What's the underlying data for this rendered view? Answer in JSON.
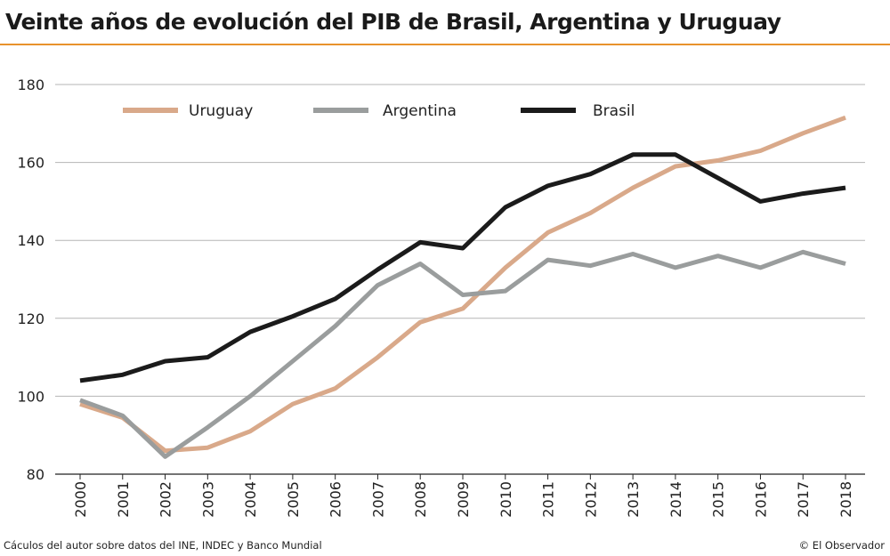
{
  "header": {
    "title": "Veinte años de evolución del PIB de Brasil, Argentina y Uruguay"
  },
  "footer": {
    "source": "Cáculos del autor sobre datos del INE, INDEC y Banco Mundial",
    "credit": "© El Observador"
  },
  "chart_data": {
    "type": "line",
    "title": "Veinte años de evolución del PIB de Brasil, Argentina y Uruguay",
    "xlabel": "",
    "ylabel": "",
    "x": [
      "2000",
      "2001",
      "2002",
      "2003",
      "2004",
      "2005",
      "2006",
      "2007",
      "2008",
      "2009",
      "2010",
      "2011",
      "2012",
      "2013",
      "2014",
      "2015",
      "2016",
      "2017",
      "2018"
    ],
    "ylim": [
      80,
      180
    ],
    "yticks": [
      80,
      100,
      120,
      140,
      160,
      180
    ],
    "grid": true,
    "legend_position": "top",
    "series": [
      {
        "name": "Uruguay",
        "color": "#d9a98a",
        "values": [
          98,
          94.5,
          86,
          86.8,
          91,
          98,
          102,
          110,
          119,
          122.5,
          133,
          142,
          147,
          153.5,
          159,
          160.5,
          163,
          167.5,
          171.5
        ]
      },
      {
        "name": "Argentina",
        "color": "#9a9d9d",
        "values": [
          99,
          95,
          84.5,
          92,
          100,
          109,
          118,
          128.5,
          134,
          126,
          127,
          135,
          133.5,
          136.5,
          133,
          136,
          133,
          137,
          134
        ]
      },
      {
        "name": "Brasil",
        "color": "#1b1b1b",
        "values": [
          104,
          105.5,
          109,
          110,
          116.5,
          120.5,
          125,
          132.5,
          139.5,
          138,
          148.5,
          154,
          157,
          162,
          162,
          156,
          150,
          152,
          153.5
        ]
      }
    ]
  }
}
